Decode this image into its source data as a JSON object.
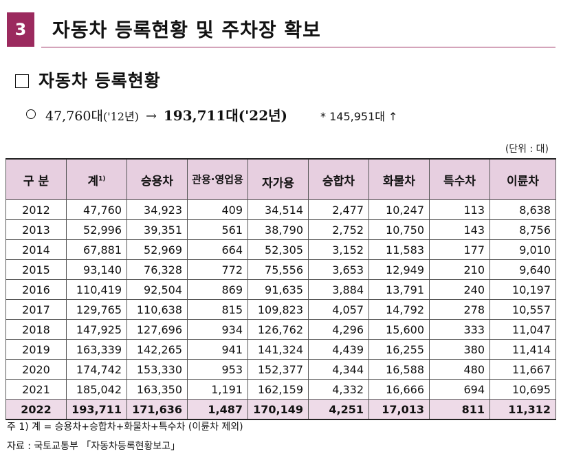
{
  "section": {
    "number": "3",
    "title": "자동차 등록현황 및 주차장 확보"
  },
  "subsection": {
    "title": "자동차 등록현황"
  },
  "summary": {
    "from_value": "47,760대",
    "from_year": "('12년)",
    "arrow": "→",
    "to_value": "193,711대",
    "to_year": "('22년)",
    "note": "* 145,951대 ↑"
  },
  "unit_label": "(단위 : 대)",
  "table": {
    "headers": {
      "category": "구 분",
      "total": "계",
      "total_note": "1)",
      "passenger": "승용차",
      "official_business": "관용·영업용",
      "private": "자가용",
      "van": "승합차",
      "truck": "화물차",
      "special": "특수차",
      "motorcycle": "이륜차"
    },
    "rows": [
      [
        "2012",
        "47,760",
        "34,923",
        "409",
        "34,514",
        "2,477",
        "10,247",
        "113",
        "8,638"
      ],
      [
        "2013",
        "52,996",
        "39,351",
        "561",
        "38,790",
        "2,752",
        "10,750",
        "143",
        "8,756"
      ],
      [
        "2014",
        "67,881",
        "52,969",
        "664",
        "52,305",
        "3,152",
        "11,583",
        "177",
        "9,010"
      ],
      [
        "2015",
        "93,140",
        "76,328",
        "772",
        "75,556",
        "3,653",
        "12,949",
        "210",
        "9,640"
      ],
      [
        "2016",
        "110,419",
        "92,504",
        "869",
        "91,635",
        "3,884",
        "13,791",
        "240",
        "10,197"
      ],
      [
        "2017",
        "129,765",
        "110,638",
        "815",
        "109,823",
        "4,057",
        "14,792",
        "278",
        "10,557"
      ],
      [
        "2018",
        "147,925",
        "127,696",
        "934",
        "126,762",
        "4,296",
        "15,600",
        "333",
        "11,047"
      ],
      [
        "2019",
        "163,339",
        "142,265",
        "941",
        "141,324",
        "4,439",
        "16,255",
        "380",
        "11,414"
      ],
      [
        "2020",
        "174,742",
        "153,330",
        "953",
        "152,377",
        "4,344",
        "16,588",
        "480",
        "11,667"
      ],
      [
        "2021",
        "185,042",
        "163,350",
        "1,191",
        "162,159",
        "4,332",
        "16,666",
        "694",
        "10,695"
      ],
      [
        "2022",
        "193,711",
        "171,636",
        "1,487",
        "170,149",
        "4,251",
        "17,013",
        "811",
        "11,312"
      ]
    ]
  },
  "footnote": "주 1) 계 = 승용차+승합차+화물차+특수차 (이륜차 제외)",
  "source": "자료 : 국토교통부 「자동차등록현황보고」",
  "colors": {
    "accent": "#9b2a5e",
    "header_bg": "#e7cfe0",
    "highlight_row_bg": "#eedbe8"
  }
}
